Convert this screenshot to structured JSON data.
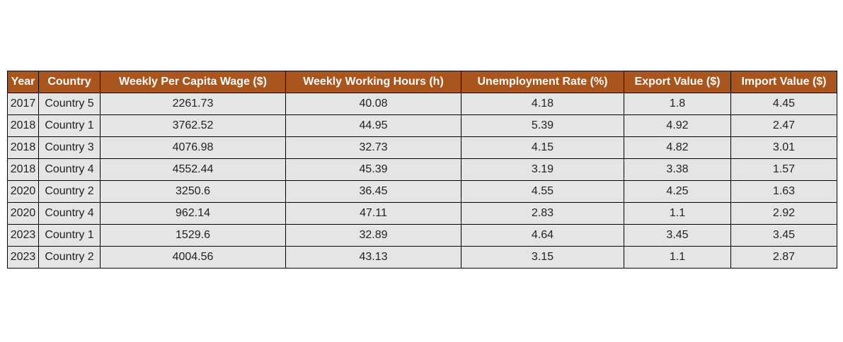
{
  "chart_data": {
    "type": "table",
    "header_color": "#a9561e",
    "cell_color": "#e5e5e5",
    "columns": [
      "Year",
      "Country",
      "Weekly Per Capita Wage ($)",
      "Weekly Working Hours (h)",
      "Unemployment Rate (%)",
      "Export Value ($)",
      "Import Value ($)"
    ],
    "rows": [
      [
        "2017",
        "Country 5",
        "2261.73",
        "40.08",
        "4.18",
        "1.8",
        "4.45"
      ],
      [
        "2018",
        "Country 1",
        "3762.52",
        "44.95",
        "5.39",
        "4.92",
        "2.47"
      ],
      [
        "2018",
        "Country 3",
        "4076.98",
        "32.73",
        "4.15",
        "4.82",
        "3.01"
      ],
      [
        "2018",
        "Country 4",
        "4552.44",
        "45.39",
        "3.19",
        "3.38",
        "1.57"
      ],
      [
        "2020",
        "Country 2",
        "3250.6",
        "36.45",
        "4.55",
        "4.25",
        "1.63"
      ],
      [
        "2020",
        "Country 4",
        "962.14",
        "47.11",
        "2.83",
        "1.1",
        "2.92"
      ],
      [
        "2023",
        "Country 1",
        "1529.6",
        "32.89",
        "4.64",
        "3.45",
        "3.45"
      ],
      [
        "2023",
        "Country 2",
        "4004.56",
        "43.13",
        "3.15",
        "1.1",
        "2.87"
      ]
    ]
  }
}
